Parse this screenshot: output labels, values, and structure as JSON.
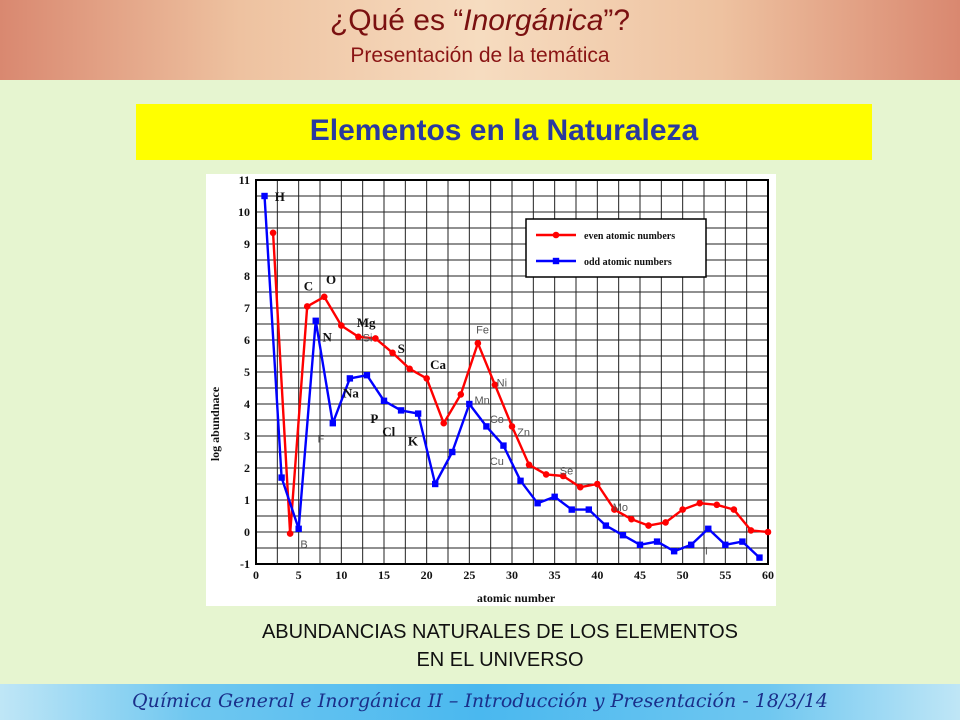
{
  "header": {
    "title_pre": "¿Qué es “",
    "title_em": "Inorgánica",
    "title_post": "”?",
    "subtitle": "Presentación de la temática"
  },
  "banner": {
    "text": "Elementos en la Naturaleza"
  },
  "caption": {
    "line1": "ABUNDANCIAS NATURALES DE LOS ELEMENTOS",
    "line2": "EN EL UNIVERSO"
  },
  "footer": {
    "text": "Química General e Inorgánica II – Introducción y Presentación - 18/3/14"
  },
  "colors": {
    "even": "#ff0000",
    "odd": "#0000ff",
    "title": "#7a1010",
    "banner_bg": "#ffff00",
    "banner_text": "#2a3a9e",
    "footer_text": "#1a2f8a",
    "page_bg": "#e6f5d0"
  },
  "chart_data": {
    "type": "line",
    "xlabel": "atomic number",
    "ylabel": "log abundnace",
    "xlim": [
      0,
      60
    ],
    "ylim": [
      -1,
      11
    ],
    "xticks": [
      0,
      5,
      10,
      15,
      20,
      25,
      30,
      35,
      40,
      45,
      50,
      55,
      60
    ],
    "yticks": [
      -1,
      0,
      1,
      2,
      3,
      4,
      5,
      6,
      7,
      8,
      9,
      10,
      11
    ],
    "grid": true,
    "legend_position": "top-right",
    "series": [
      {
        "name": "even atomic numbers",
        "color": "#ff0000",
        "marker": "circle",
        "x": [
          2,
          4,
          6,
          8,
          10,
          12,
          14,
          16,
          18,
          20,
          22,
          24,
          26,
          28,
          30,
          32,
          34,
          36,
          38,
          40,
          42,
          44,
          46,
          48,
          50,
          52,
          54,
          56,
          58,
          60
        ],
        "y": [
          9.35,
          -0.05,
          7.05,
          7.35,
          6.45,
          6.1,
          6.05,
          5.6,
          5.1,
          4.8,
          3.4,
          4.3,
          5.9,
          4.6,
          3.3,
          2.1,
          1.8,
          1.75,
          1.4,
          1.5,
          0.7,
          0.4,
          0.2,
          0.3,
          0.7,
          0.9,
          0.85,
          0.7,
          0.05,
          0.0
        ]
      },
      {
        "name": "odd atomic numbers",
        "color": "#0000ff",
        "marker": "square",
        "x": [
          1,
          3,
          5,
          7,
          9,
          11,
          13,
          15,
          17,
          19,
          21,
          23,
          25,
          27,
          29,
          31,
          33,
          35,
          37,
          39,
          41,
          43,
          45,
          47,
          49,
          51,
          53,
          55,
          57,
          59
        ],
        "y": [
          10.5,
          1.7,
          0.1,
          6.6,
          3.4,
          4.8,
          4.9,
          4.1,
          3.8,
          3.7,
          1.5,
          2.5,
          4.0,
          3.3,
          2.7,
          1.6,
          0.9,
          1.1,
          0.7,
          0.7,
          0.2,
          -0.1,
          -0.4,
          -0.3,
          -0.6,
          -0.4,
          0.1,
          -0.4,
          -0.3,
          -0.8
        ]
      }
    ],
    "annotations": [
      {
        "text": "H",
        "x": 2.2,
        "y": 10.35,
        "style": "bold"
      },
      {
        "text": "C",
        "x": 5.6,
        "y": 7.55,
        "style": "bold"
      },
      {
        "text": "O",
        "x": 8.2,
        "y": 7.75,
        "style": "bold"
      },
      {
        "text": "N",
        "x": 7.8,
        "y": 5.95,
        "style": "bold"
      },
      {
        "text": "Mg",
        "x": 11.8,
        "y": 6.4,
        "style": "bold"
      },
      {
        "text": "Si",
        "x": 12.5,
        "y": 5.95,
        "style": "light"
      },
      {
        "text": "S",
        "x": 16.6,
        "y": 5.6,
        "style": "bold"
      },
      {
        "text": "Ca",
        "x": 20.4,
        "y": 5.1,
        "style": "bold"
      },
      {
        "text": "Fe",
        "x": 25.8,
        "y": 6.2,
        "style": "light"
      },
      {
        "text": "Ni",
        "x": 28.2,
        "y": 4.55,
        "style": "light"
      },
      {
        "text": "Na",
        "x": 10.2,
        "y": 4.2,
        "style": "bold"
      },
      {
        "text": "P",
        "x": 13.4,
        "y": 3.4,
        "style": "bold"
      },
      {
        "text": "Cl",
        "x": 14.8,
        "y": 3.0,
        "style": "bold"
      },
      {
        "text": "K",
        "x": 17.8,
        "y": 2.7,
        "style": "bold"
      },
      {
        "text": "F",
        "x": 7.2,
        "y": 2.8,
        "style": "light"
      },
      {
        "text": "Mn",
        "x": 25.6,
        "y": 4.0,
        "style": "light"
      },
      {
        "text": "Co",
        "x": 27.4,
        "y": 3.4,
        "style": "light"
      },
      {
        "text": "Cu",
        "x": 27.4,
        "y": 2.1,
        "style": "light"
      },
      {
        "text": "Zn",
        "x": 30.6,
        "y": 3.0,
        "style": "light"
      },
      {
        "text": "Se",
        "x": 35.6,
        "y": 1.8,
        "style": "light"
      },
      {
        "text": "Mo",
        "x": 41.8,
        "y": 0.65,
        "style": "light"
      },
      {
        "text": "B",
        "x": 5.2,
        "y": -0.5,
        "style": "light"
      },
      {
        "text": "I",
        "x": 52.6,
        "y": -0.7,
        "style": "light"
      }
    ]
  }
}
